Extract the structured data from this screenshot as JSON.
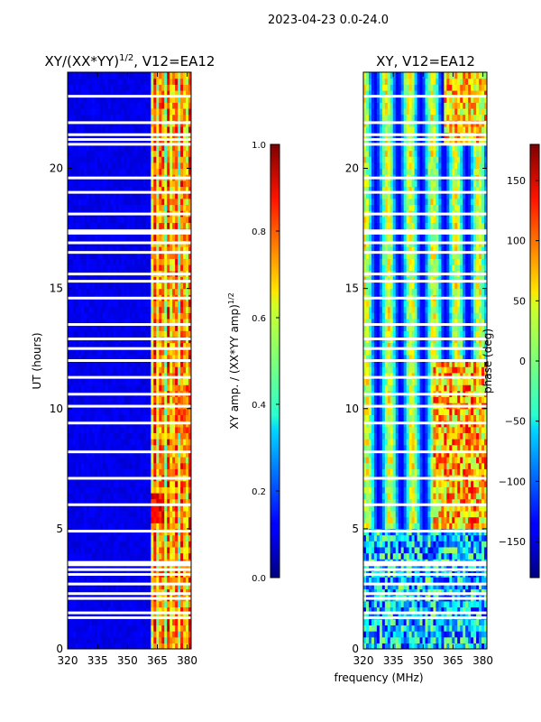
{
  "page_title": "2023-04-23 0.0-24.0",
  "chart_data": [
    {
      "type": "heatmap",
      "title_main": "XY/(XX*YY)",
      "title_sup": "1/2",
      "title_tail": ", V12=EA12",
      "xlabel": "",
      "ylabel": "UT (hours)",
      "xlim": [
        320,
        382
      ],
      "ylim": [
        0,
        24
      ],
      "xticks": [
        320,
        335,
        350,
        365,
        380
      ],
      "yticks": [
        0,
        5,
        10,
        15,
        20
      ],
      "colorbar": {
        "label_main": "XY amp. / (XX*YY amp)",
        "label_sup": "1/2",
        "range": [
          0.0,
          1.0
        ],
        "ticks": [
          "0.0",
          "0.2",
          "0.4",
          "0.6",
          "0.8",
          "1.0"
        ],
        "tick_values": [
          0.0,
          0.2,
          0.4,
          0.6,
          0.8,
          1.0
        ],
        "colormap": "jet"
      },
      "flagged_hours": [
        1.3,
        1.5,
        2.1,
        2.3,
        2.7,
        3.1,
        3.3,
        3.5,
        3.6,
        4.9,
        6.0,
        7.1,
        8.2,
        9.4,
        10.1,
        10.6,
        11.3,
        12.0,
        12.5,
        12.9,
        13.5,
        14.6,
        15.3,
        15.6,
        16.5,
        16.9,
        17.3,
        17.4,
        18.1,
        19.0,
        19.6,
        21.0,
        21.2,
        21.4,
        21.9,
        23.0
      ]
    },
    {
      "type": "heatmap",
      "title": "XY, V12=EA12",
      "xlabel": "frequency (MHz)",
      "ylabel": "",
      "xlim": [
        320,
        382
      ],
      "ylim": [
        0,
        24
      ],
      "xticks": [
        320,
        335,
        350,
        365,
        380
      ],
      "yticks": [
        0,
        5,
        10,
        15,
        20
      ],
      "colorbar": {
        "label": "phase (deg)",
        "range": [
          -180,
          180
        ],
        "ticks": [
          "−150",
          "−100",
          "−50",
          "0",
          "50",
          "100",
          "150"
        ],
        "tick_values": [
          -150,
          -100,
          -50,
          0,
          50,
          100,
          150
        ],
        "colormap": "jet"
      },
      "flagged_hours": [
        1.3,
        1.5,
        2.1,
        2.3,
        2.7,
        3.1,
        3.3,
        3.5,
        3.6,
        4.9,
        6.0,
        7.1,
        8.2,
        9.4,
        10.1,
        10.6,
        11.3,
        12.0,
        12.5,
        12.9,
        13.5,
        14.6,
        15.3,
        15.6,
        16.5,
        16.9,
        17.3,
        17.4,
        18.1,
        19.0,
        19.6,
        21.0,
        21.2,
        21.4,
        21.9,
        23.0
      ]
    }
  ]
}
